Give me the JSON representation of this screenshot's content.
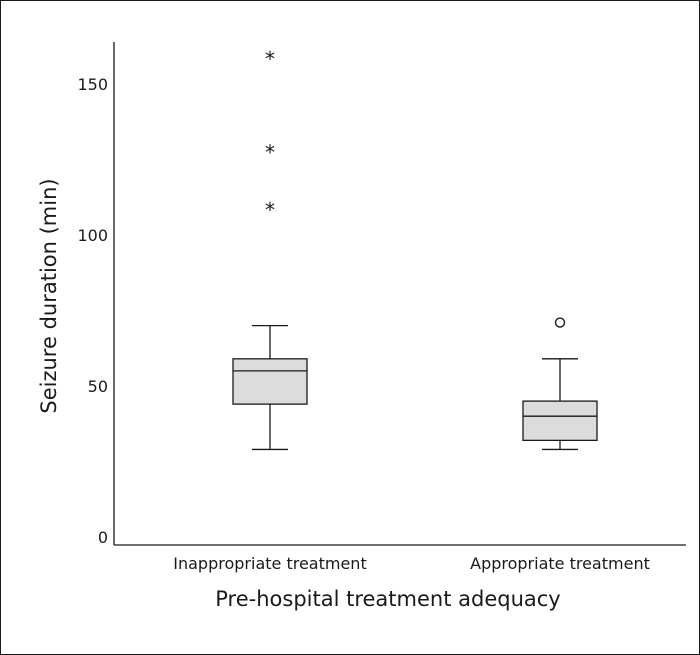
{
  "chart_data": {
    "type": "box",
    "xlabel": "Pre-hospital treatment adequacy",
    "ylabel": "Seizure duration (min)",
    "ylim": [
      0,
      165
    ],
    "yticks": [
      0,
      50,
      100,
      150
    ],
    "ytick_labels": [
      "0",
      "50",
      "100",
      "150"
    ],
    "categories": [
      "Inappropriate treatment",
      "Appropriate treatment"
    ],
    "boxes": [
      {
        "category": "Inappropriate treatment",
        "whisker_low": 29,
        "q1": 44,
        "median": 55,
        "q3": 59,
        "whisker_high": 70,
        "outliers": [],
        "extremes": [
          109,
          128,
          159
        ]
      },
      {
        "category": "Appropriate treatment",
        "whisker_low": 29,
        "q1": 32,
        "median": 40,
        "q3": 45,
        "whisker_high": 59,
        "outliers": [
          71
        ],
        "extremes": []
      }
    ],
    "box_fill": "#dcdcdc",
    "grid": false
  }
}
